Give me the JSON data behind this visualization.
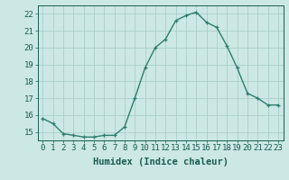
{
  "x": [
    0,
    1,
    2,
    3,
    4,
    5,
    6,
    7,
    8,
    9,
    10,
    11,
    12,
    13,
    14,
    15,
    16,
    17,
    18,
    19,
    20,
    21,
    22,
    23
  ],
  "y": [
    15.8,
    15.5,
    14.9,
    14.8,
    14.7,
    14.7,
    14.8,
    14.8,
    15.3,
    17.0,
    18.8,
    20.0,
    20.5,
    21.6,
    21.9,
    22.1,
    21.5,
    21.2,
    20.1,
    18.8,
    17.3,
    17.0,
    16.6,
    16.6
  ],
  "line_color": "#2e7d6e",
  "marker": "+",
  "bg_color": "#cce8e4",
  "grid_color": "#aacfcb",
  "tick_color": "#1a5c50",
  "xlabel": "Humidex (Indice chaleur)",
  "ylim": [
    14.5,
    22.5
  ],
  "xlim": [
    -0.5,
    23.5
  ],
  "yticks": [
    15,
    16,
    17,
    18,
    19,
    20,
    21,
    22
  ],
  "xticks": [
    0,
    1,
    2,
    3,
    4,
    5,
    6,
    7,
    8,
    9,
    10,
    11,
    12,
    13,
    14,
    15,
    16,
    17,
    18,
    19,
    20,
    21,
    22,
    23
  ],
  "font_color": "#1a5c50",
  "tick_fontsize": 6.5,
  "xlabel_fontsize": 7.5,
  "marker_size": 3,
  "linewidth": 1.0
}
